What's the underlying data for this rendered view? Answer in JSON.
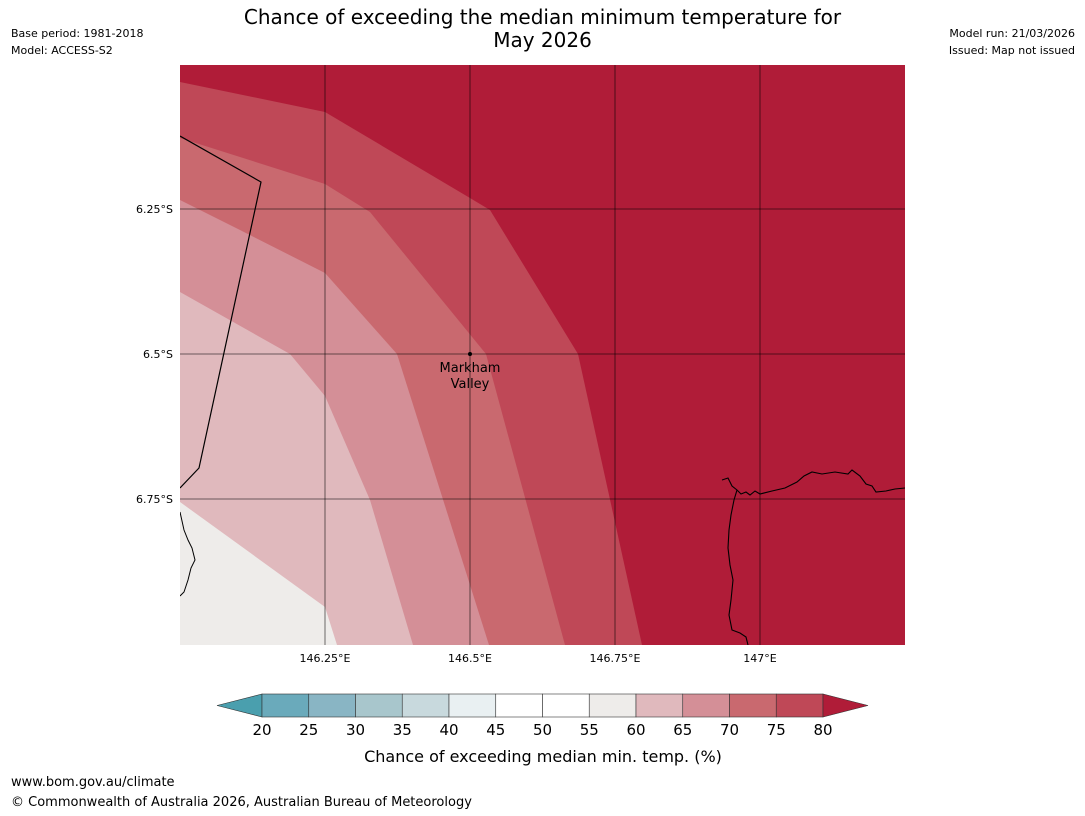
{
  "header": {
    "base_period": "Base period: 1981-2018",
    "model": "Model: ACCESS-S2",
    "model_run": "Model run: 21/03/2026",
    "issued": "Issued: Map not issued",
    "title_line1": "Chance of exceeding the median minimum temperature for",
    "title_line2": "May 2026"
  },
  "map": {
    "lat_labels": [
      "6.25°S",
      "6.5°S",
      "6.75°S"
    ],
    "lon_labels": [
      "146.25°E",
      "146.5°E",
      "146.75°E",
      "147°E"
    ],
    "place": {
      "name_line1": "Markham",
      "name_line2": "Valley"
    }
  },
  "legend": {
    "ticks": [
      "20",
      "25",
      "30",
      "35",
      "40",
      "45",
      "50",
      "55",
      "60",
      "65",
      "70",
      "75",
      "80"
    ],
    "colors": [
      "#4a9fae",
      "#6aaabb",
      "#89b5c4",
      "#a8c6cc",
      "#c8d9dd",
      "#e9f0f2",
      "#ffffff",
      "#ffffff",
      "#eeecea",
      "#e0b9bd",
      "#d48f97",
      "#c9696f",
      "#bf4857",
      "#b01c38"
    ],
    "label": "Chance of exceeding median min. temp. (%)"
  },
  "footer": {
    "url": "www.bom.gov.au/climate",
    "copyright": "© Commonwealth of Australia 2026, Australian Bureau of Meteorology"
  }
}
